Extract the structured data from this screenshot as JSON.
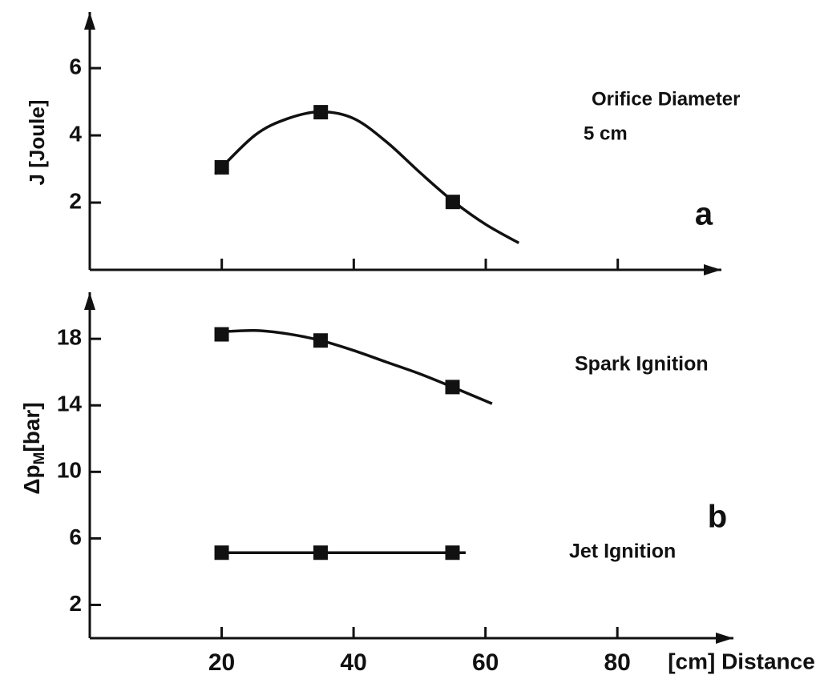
{
  "chart_data": [
    {
      "type": "line",
      "panel_label": "a",
      "ylabel": "J [Joule]",
      "annotations": [
        "Orifice Diameter",
        "5 cm"
      ],
      "xlim": [
        0,
        95.7
      ],
      "xticks": [
        20,
        40,
        60,
        80
      ],
      "show_xtick_labels": false,
      "ylim": [
        0,
        7.67
      ],
      "yticks": [
        2,
        4,
        6
      ],
      "series": [
        {
          "x": [
            20,
            35,
            55
          ],
          "values": [
            3.05,
            4.69,
            2.02
          ],
          "curve": {
            "x": [
              19,
              25,
              30,
              35,
              40,
              45,
              50,
              55,
              60,
              65
            ],
            "values": [
              2.85,
              4.0,
              4.5,
              4.7,
              4.5,
              3.8,
              2.9,
              2.05,
              1.35,
              0.8
            ]
          }
        }
      ]
    },
    {
      "type": "line",
      "panel_label": "b",
      "ylabel": {
        "main": "Δp",
        "sub": "M",
        "unit": "[bar]"
      },
      "xlabel": "[cm] Distance",
      "xlim": [
        0,
        97.6
      ],
      "xticks": [
        20,
        40,
        60,
        80
      ],
      "show_xtick_labels": true,
      "ylim": [
        0,
        20.8
      ],
      "yticks": [
        2,
        6,
        10,
        14,
        18
      ],
      "series": [
        {
          "name": "Spark Ignition",
          "x": [
            20,
            35,
            55
          ],
          "values": [
            18.27,
            17.9,
            15.1
          ],
          "curve": {
            "x": [
              19,
              25,
              30,
              35,
              40,
              45,
              50,
              55,
              61
            ],
            "values": [
              18.4,
              18.5,
              18.3,
              17.9,
              17.3,
              16.6,
              15.9,
              15.1,
              14.1
            ]
          }
        },
        {
          "name": "Jet Ignition",
          "x": [
            20,
            35,
            55
          ],
          "values": [
            5.14,
            5.14,
            5.14
          ],
          "curve": {
            "x": [
              19,
              57
            ],
            "values": [
              5.14,
              5.14
            ]
          }
        }
      ]
    }
  ]
}
